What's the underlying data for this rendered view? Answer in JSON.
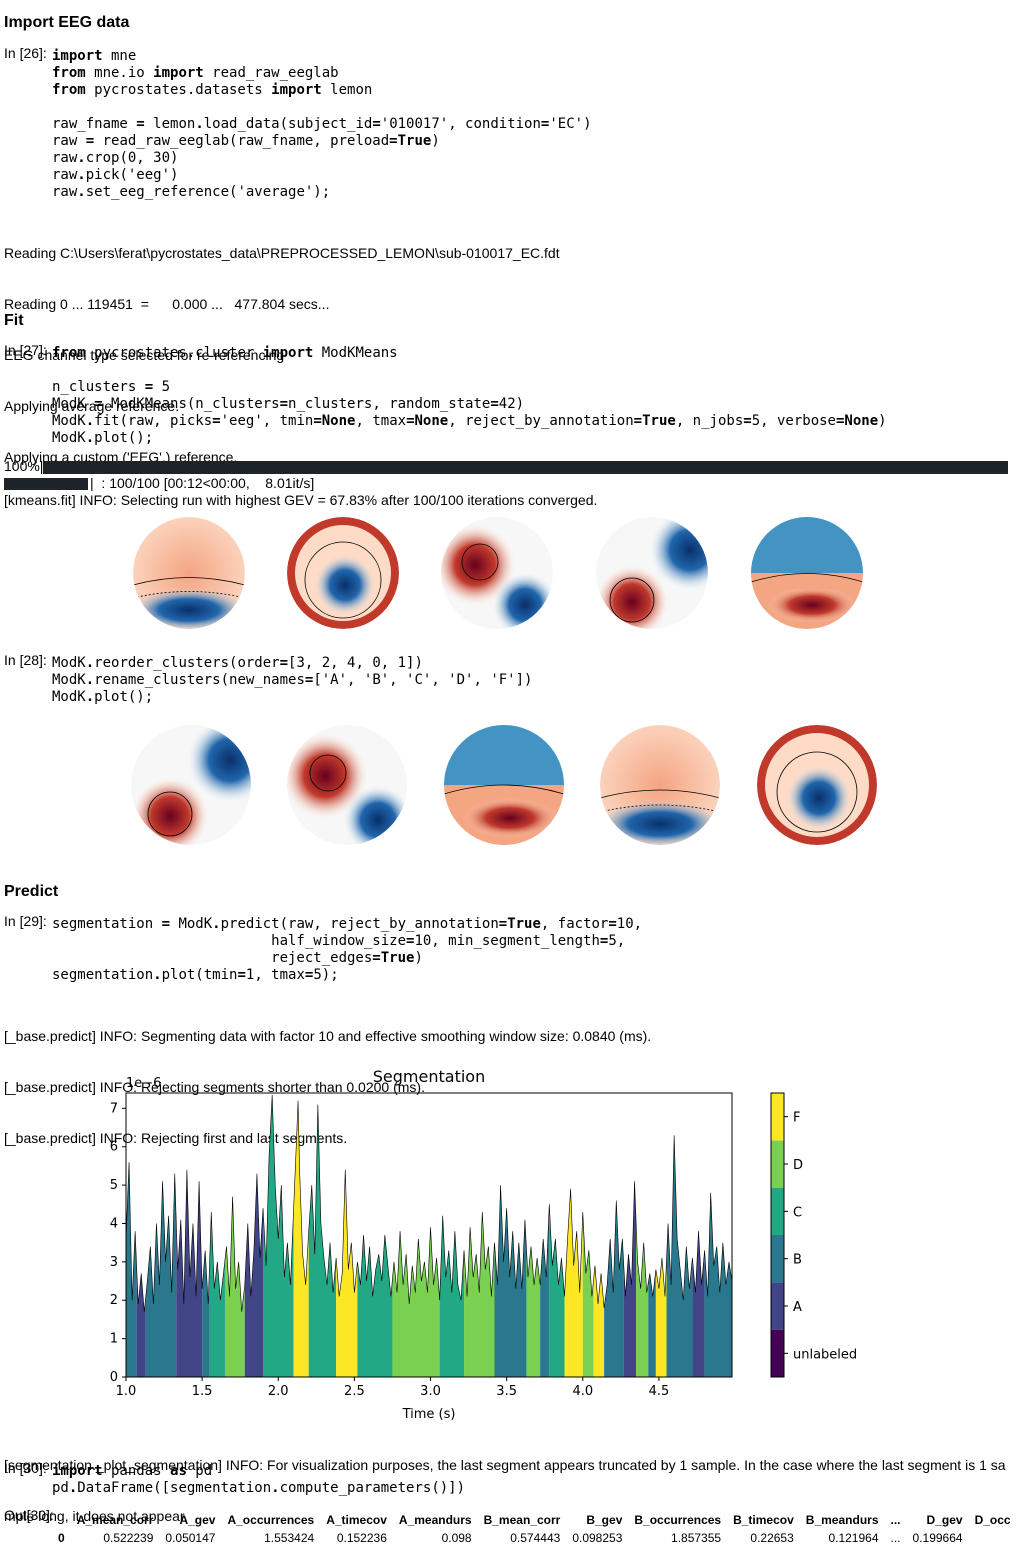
{
  "sections": {
    "import": "Import EEG data",
    "fit": "Fit",
    "predict": "Predict"
  },
  "cells": {
    "c26": {
      "prompt": "In [26]:"
    },
    "c27": {
      "prompt": "In [27]:"
    },
    "c28": {
      "prompt": "In [28]:"
    },
    "c29": {
      "prompt": "In [29]:"
    },
    "c30": {
      "prompt": "In [30]:",
      "out_prompt": "Out[30]:"
    }
  },
  "outputs": {
    "o26": [
      "Reading C:\\Users\\ferat\\pycrostates_data\\PREPROCESSED_LEMON\\sub-010017_EC.fdt",
      "Reading 0 ... 119451  =      0.000 ...   477.804 secs...",
      "EEG channel type selected for re-referencing",
      "Applying average reference.",
      "Applying a custom ('EEG',) reference."
    ],
    "o27_pct": "100%|",
    "o27_prog": "|  : 100/100 [00:12<00:00,    8.01it/s]",
    "o27_info": "[kmeans.fit] INFO: Selecting run with highest GEV = 67.83% after 100/100 iterations converged.",
    "o29": [
      "[_base.predict] INFO: Segmenting data with factor 10 and effective smoothing window size: 0.0840 (ms).",
      "[_base.predict] INFO: Rejecting segments shorter than 0.0200 (ms).",
      "[_base.predict] INFO: Rejecting first and last segments."
    ],
    "o29_after": [
      "[segmentation._plot_segmentation] INFO: For visualization purposes, the last segment appears truncated by 1 sample. In the case where the last segment is 1 sa",
      "mple long, it does not appear."
    ]
  },
  "table": {
    "headers": [
      "",
      "A_mean_corr",
      "A_gev",
      "A_occurrences",
      "A_timecov",
      "A_meandurs",
      "B_mean_corr",
      "B_gev",
      "B_occurrences",
      "B_timecov",
      "B_meandurs",
      "...",
      "D_gev",
      "D_occ"
    ],
    "rows": [
      [
        "0",
        "0.522239",
        "0.050147",
        "1.553424",
        "0.152236",
        "0.098",
        "0.574443",
        "0.098253",
        "1.857355",
        "0.22653",
        "0.121964",
        "...",
        "0.199664",
        ""
      ]
    ]
  },
  "chart_data": {
    "type": "area",
    "title": "Segmentation",
    "xlabel": "Time (s)",
    "ylabel": "",
    "y_offset_text": "1e−6",
    "xlim": [
      1.0,
      4.98
    ],
    "ylim": [
      0,
      7.4
    ],
    "xticks": [
      "1.0",
      "1.5",
      "2.0",
      "2.5",
      "3.0",
      "3.5",
      "4.0",
      "4.5"
    ],
    "yticks": [
      "0",
      "1",
      "2",
      "3",
      "4",
      "5",
      "6",
      "7"
    ],
    "colorbar": {
      "labels": [
        "unlabeled",
        "A",
        "B",
        "C",
        "D",
        "F"
      ],
      "colors": [
        "#440154",
        "#414487",
        "#2a788e",
        "#22a884",
        "#7ad151",
        "#fde725"
      ]
    },
    "segments": [
      {
        "x0": 1.0,
        "x1": 1.07,
        "state": "B"
      },
      {
        "x0": 1.07,
        "x1": 1.13,
        "state": "A"
      },
      {
        "x0": 1.13,
        "x1": 1.33,
        "state": "B"
      },
      {
        "x0": 1.33,
        "x1": 1.5,
        "state": "A"
      },
      {
        "x0": 1.5,
        "x1": 1.55,
        "state": "B"
      },
      {
        "x0": 1.55,
        "x1": 1.65,
        "state": "C"
      },
      {
        "x0": 1.65,
        "x1": 1.78,
        "state": "D"
      },
      {
        "x0": 1.78,
        "x1": 1.9,
        "state": "A"
      },
      {
        "x0": 1.9,
        "x1": 2.1,
        "state": "C"
      },
      {
        "x0": 2.1,
        "x1": 2.2,
        "state": "F"
      },
      {
        "x0": 2.2,
        "x1": 2.38,
        "state": "C"
      },
      {
        "x0": 2.38,
        "x1": 2.52,
        "state": "F"
      },
      {
        "x0": 2.52,
        "x1": 2.75,
        "state": "C"
      },
      {
        "x0": 2.75,
        "x1": 3.06,
        "state": "D"
      },
      {
        "x0": 3.06,
        "x1": 3.22,
        "state": "C"
      },
      {
        "x0": 3.22,
        "x1": 3.42,
        "state": "D"
      },
      {
        "x0": 3.42,
        "x1": 3.63,
        "state": "B"
      },
      {
        "x0": 3.63,
        "x1": 3.72,
        "state": "D"
      },
      {
        "x0": 3.72,
        "x1": 3.78,
        "state": "B"
      },
      {
        "x0": 3.78,
        "x1": 3.88,
        "state": "C"
      },
      {
        "x0": 3.88,
        "x1": 4.0,
        "state": "F"
      },
      {
        "x0": 4.0,
        "x1": 4.07,
        "state": "D"
      },
      {
        "x0": 4.07,
        "x1": 4.14,
        "state": "F"
      },
      {
        "x0": 4.14,
        "x1": 4.27,
        "state": "B"
      },
      {
        "x0": 4.27,
        "x1": 4.35,
        "state": "A"
      },
      {
        "x0": 4.35,
        "x1": 4.43,
        "state": "D"
      },
      {
        "x0": 4.43,
        "x1": 4.48,
        "state": "B"
      },
      {
        "x0": 4.48,
        "x1": 4.55,
        "state": "F"
      },
      {
        "x0": 4.55,
        "x1": 4.72,
        "state": "B"
      },
      {
        "x0": 4.72,
        "x1": 4.8,
        "state": "A"
      },
      {
        "x0": 4.8,
        "x1": 4.98,
        "state": "B"
      }
    ],
    "gfp": [
      [
        1.0,
        3.6
      ],
      [
        1.02,
        5.6
      ],
      [
        1.04,
        2.0
      ],
      [
        1.06,
        3.8
      ],
      [
        1.08,
        1.9
      ],
      [
        1.1,
        2.7
      ],
      [
        1.12,
        1.7
      ],
      [
        1.14,
        2.5
      ],
      [
        1.16,
        3.4
      ],
      [
        1.18,
        1.9
      ],
      [
        1.2,
        4.0
      ],
      [
        1.22,
        2.4
      ],
      [
        1.24,
        5.1
      ],
      [
        1.26,
        3.0
      ],
      [
        1.28,
        4.2
      ],
      [
        1.3,
        2.2
      ],
      [
        1.32,
        5.3
      ],
      [
        1.34,
        2.8
      ],
      [
        1.36,
        4.1
      ],
      [
        1.38,
        1.9
      ],
      [
        1.4,
        5.4
      ],
      [
        1.42,
        2.6
      ],
      [
        1.44,
        4.0
      ],
      [
        1.46,
        2.1
      ],
      [
        1.48,
        5.1
      ],
      [
        1.5,
        2.3
      ],
      [
        1.52,
        3.3
      ],
      [
        1.54,
        1.9
      ],
      [
        1.56,
        4.3
      ],
      [
        1.58,
        2.3
      ],
      [
        1.6,
        3.0
      ],
      [
        1.62,
        2.0
      ],
      [
        1.64,
        2.7
      ],
      [
        1.66,
        3.4
      ],
      [
        1.68,
        2.1
      ],
      [
        1.7,
        4.7
      ],
      [
        1.72,
        2.3
      ],
      [
        1.74,
        3.0
      ],
      [
        1.76,
        1.7
      ],
      [
        1.78,
        2.4
      ],
      [
        1.8,
        4.0
      ],
      [
        1.82,
        2.1
      ],
      [
        1.84,
        3.3
      ],
      [
        1.86,
        5.3
      ],
      [
        1.88,
        3.1
      ],
      [
        1.9,
        4.4
      ],
      [
        1.92,
        2.9
      ],
      [
        1.94,
        5.8
      ],
      [
        1.96,
        7.35
      ],
      [
        1.98,
        5.0
      ],
      [
        2.0,
        3.6
      ],
      [
        2.02,
        5.0
      ],
      [
        2.04,
        2.6
      ],
      [
        2.06,
        3.5
      ],
      [
        2.08,
        2.4
      ],
      [
        2.1,
        4.3
      ],
      [
        2.12,
        6.2
      ],
      [
        2.13,
        7.2
      ],
      [
        2.14,
        5.4
      ],
      [
        2.16,
        3.2
      ],
      [
        2.18,
        2.4
      ],
      [
        2.2,
        3.8
      ],
      [
        2.22,
        5.0
      ],
      [
        2.24,
        3.2
      ],
      [
        2.26,
        7.1
      ],
      [
        2.28,
        4.0
      ],
      [
        2.3,
        3.1
      ],
      [
        2.32,
        2.4
      ],
      [
        2.34,
        3.5
      ],
      [
        2.36,
        2.2
      ],
      [
        2.38,
        3.1
      ],
      [
        2.4,
        2.1
      ],
      [
        2.42,
        2.7
      ],
      [
        2.44,
        5.4
      ],
      [
        2.46,
        2.8
      ],
      [
        2.48,
        3.5
      ],
      [
        2.5,
        2.2
      ],
      [
        2.52,
        3.0
      ],
      [
        2.54,
        2.4
      ],
      [
        2.56,
        3.7
      ],
      [
        2.58,
        2.5
      ],
      [
        2.6,
        3.4
      ],
      [
        2.62,
        2.1
      ],
      [
        2.64,
        2.8
      ],
      [
        2.66,
        3.2
      ],
      [
        2.68,
        2.5
      ],
      [
        2.7,
        3.7
      ],
      [
        2.72,
        2.9
      ],
      [
        2.74,
        2.1
      ],
      [
        2.76,
        3.0
      ],
      [
        2.78,
        2.2
      ],
      [
        2.8,
        3.8
      ],
      [
        2.82,
        2.4
      ],
      [
        2.84,
        3.2
      ],
      [
        2.86,
        1.9
      ],
      [
        2.88,
        2.9
      ],
      [
        2.9,
        2.2
      ],
      [
        2.92,
        3.6
      ],
      [
        2.94,
        2.5
      ],
      [
        2.96,
        3.0
      ],
      [
        2.98,
        2.2
      ],
      [
        3.0,
        3.9
      ],
      [
        3.02,
        2.4
      ],
      [
        3.04,
        3.1
      ],
      [
        3.06,
        2.0
      ],
      [
        3.08,
        4.2
      ],
      [
        3.1,
        2.6
      ],
      [
        3.12,
        3.3
      ],
      [
        3.14,
        2.2
      ],
      [
        3.16,
        3.8
      ],
      [
        3.18,
        2.4
      ],
      [
        3.2,
        2.0
      ],
      [
        3.22,
        3.3
      ],
      [
        3.24,
        2.1
      ],
      [
        3.26,
        3.9
      ],
      [
        3.28,
        2.6
      ],
      [
        3.3,
        3.2
      ],
      [
        3.32,
        2.2
      ],
      [
        3.34,
        4.3
      ],
      [
        3.36,
        2.8
      ],
      [
        3.38,
        3.4
      ],
      [
        3.4,
        2.1
      ],
      [
        3.42,
        3.5
      ],
      [
        3.44,
        2.4
      ],
      [
        3.46,
        5.0
      ],
      [
        3.48,
        3.0
      ],
      [
        3.5,
        4.4
      ],
      [
        3.52,
        2.6
      ],
      [
        3.54,
        3.8
      ],
      [
        3.56,
        2.3
      ],
      [
        3.58,
        3.5
      ],
      [
        3.6,
        2.3
      ],
      [
        3.62,
        4.1
      ],
      [
        3.64,
        2.6
      ],
      [
        3.66,
        3.4
      ],
      [
        3.68,
        2.4
      ],
      [
        3.7,
        3.1
      ],
      [
        3.72,
        2.4
      ],
      [
        3.74,
        3.6
      ],
      [
        3.76,
        2.6
      ],
      [
        3.78,
        4.5
      ],
      [
        3.8,
        2.9
      ],
      [
        3.82,
        3.6
      ],
      [
        3.84,
        2.4
      ],
      [
        3.86,
        3.1
      ],
      [
        3.88,
        2.1
      ],
      [
        3.9,
        3.6
      ],
      [
        3.92,
        4.9
      ],
      [
        3.94,
        2.9
      ],
      [
        3.96,
        3.8
      ],
      [
        3.98,
        2.2
      ],
      [
        4.0,
        4.3
      ],
      [
        4.02,
        2.7
      ],
      [
        4.04,
        3.3
      ],
      [
        4.06,
        2.1
      ],
      [
        4.08,
        2.9
      ],
      [
        4.1,
        1.9
      ],
      [
        4.12,
        2.7
      ],
      [
        4.14,
        1.8
      ],
      [
        4.16,
        2.4
      ],
      [
        4.18,
        3.6
      ],
      [
        4.2,
        2.2
      ],
      [
        4.22,
        4.6
      ],
      [
        4.24,
        2.8
      ],
      [
        4.26,
        3.6
      ],
      [
        4.28,
        2.1
      ],
      [
        4.3,
        3.2
      ],
      [
        4.32,
        2.4
      ],
      [
        4.34,
        5.1
      ],
      [
        4.36,
        3.0
      ],
      [
        4.38,
        2.3
      ],
      [
        4.4,
        3.5
      ],
      [
        4.42,
        2.2
      ],
      [
        4.44,
        2.7
      ],
      [
        4.46,
        2.1
      ],
      [
        4.48,
        2.8
      ],
      [
        4.5,
        2.3
      ],
      [
        4.52,
        3.1
      ],
      [
        4.54,
        2.1
      ],
      [
        4.56,
        4.0
      ],
      [
        4.58,
        2.4
      ],
      [
        4.6,
        6.3
      ],
      [
        4.62,
        3.6
      ],
      [
        4.64,
        2.8
      ],
      [
        4.66,
        2.0
      ],
      [
        4.68,
        3.4
      ],
      [
        4.7,
        2.3
      ],
      [
        4.72,
        3.1
      ],
      [
        4.74,
        2.2
      ],
      [
        4.76,
        3.8
      ],
      [
        4.78,
        2.4
      ],
      [
        4.8,
        3.3
      ],
      [
        4.82,
        2.1
      ],
      [
        4.84,
        4.8
      ],
      [
        4.86,
        2.9
      ],
      [
        4.88,
        3.4
      ],
      [
        4.9,
        2.2
      ],
      [
        4.92,
        3.5
      ],
      [
        4.94,
        2.4
      ],
      [
        4.96,
        3.0
      ],
      [
        4.98,
        2.5
      ]
    ]
  }
}
